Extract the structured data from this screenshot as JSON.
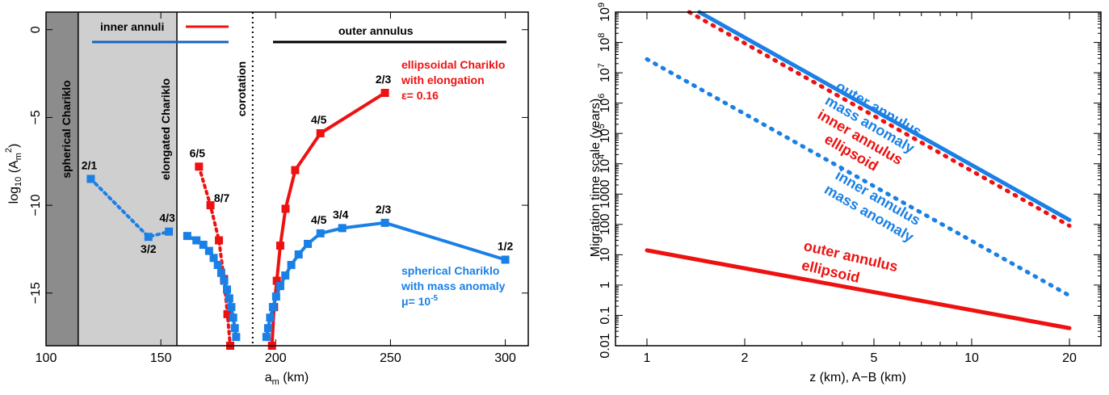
{
  "colors": {
    "red": "#ee1111",
    "blue": "#1a80e6",
    "dark_band": "#8c8c8c",
    "light_band": "#cfcfcf"
  },
  "chart_data": [
    {
      "type": "line",
      "xlabel": "a_m (km)",
      "ylabel": "log10 (A_m^2)",
      "xlim": [
        100,
        310
      ],
      "ylim": [
        -18,
        1
      ],
      "xticks": [
        "100",
        "150",
        "200",
        "250",
        "300"
      ],
      "yticks": [
        "0",
        "−5",
        "−10",
        "−15"
      ],
      "regions": [
        {
          "label": "spherical Chariklo",
          "x0": 100,
          "x1": 114
        },
        {
          "label": "elongated Chariklo",
          "x0": 114,
          "x1": 157
        }
      ],
      "corotation": {
        "label": "corotation",
        "x": 190
      },
      "bars": [
        {
          "label": "inner annuli",
          "color": "blue",
          "x0": 119,
          "x1": 183
        },
        {
          "label": "",
          "color": "red",
          "x0": 165,
          "x1": 183
        },
        {
          "label": "outer annulus",
          "color": "black",
          "x0": 199,
          "x1": 300
        }
      ],
      "series": [
        {
          "name": "ellipsoidal Chariklo with elongation ε= 0.16",
          "color": "red",
          "segments": [
            {
              "style": "dotted",
              "x": [
                166.6,
                171.6,
                175.3,
                177.5,
                179.0,
                180.2
              ],
              "y": [
                -7.8,
                -10.0,
                -12.0,
                -14.2,
                -16.2,
                -18.0
              ]
            },
            {
              "style": "solid",
              "x": [
                198.4,
                199.3,
                200.5,
                202.0,
                204.3,
                208.5,
                219.5,
                247.6
              ],
              "y": [
                -18.0,
                -15.8,
                -14.3,
                -12.3,
                -10.2,
                -8.0,
                -5.9,
                -3.6
              ]
            }
          ],
          "labels": [
            {
              "text": "6/5",
              "x": 166.6,
              "y": -7.8
            },
            {
              "text": "8/7",
              "x": 171.6,
              "y": -10.0
            },
            {
              "text": "4/5",
              "x": 219.5,
              "y": -5.9
            },
            {
              "text": "2/3",
              "x": 247.6,
              "y": -3.6
            }
          ]
        },
        {
          "name": "spherical Chariklo with mass anomaly μ= 10-5",
          "color": "blue",
          "segments": [
            {
              "style": "dotted",
              "x": [
                119.5,
                144.6,
                153.5
              ],
              "y": [
                -8.5,
                -11.8,
                -11.5
              ]
            },
            {
              "style": "solid",
              "x": [
                161.5,
                165.5,
                168.5,
                171.0,
                173.0,
                174.8,
                176.3,
                177.6,
                178.8,
                179.8,
                180.7,
                181.5,
                182.2,
                182.8
              ],
              "y": [
                -11.75,
                -12.0,
                -12.25,
                -12.6,
                -13.0,
                -13.4,
                -13.85,
                -14.3,
                -14.8,
                -15.3,
                -15.8,
                -16.4,
                -17.0,
                -17.5
              ]
            },
            {
              "style": "solid",
              "x": [
                196.0,
                196.7,
                197.6,
                198.8,
                200.2,
                202.0,
                204.2,
                206.8,
                210.0,
                214.0,
                219.5,
                229.0,
                247.6,
                300.0
              ],
              "y": [
                -17.5,
                -17.0,
                -16.4,
                -15.8,
                -15.2,
                -14.6,
                -14.0,
                -13.4,
                -12.8,
                -12.2,
                -11.6,
                -11.3,
                -11.0,
                -13.1
              ]
            }
          ],
          "labels": [
            {
              "text": "2/1",
              "x": 119.5,
              "y": -8.5
            },
            {
              "text": "3/2",
              "x": 144.6,
              "y": -11.8
            },
            {
              "text": "4/3",
              "x": 153.5,
              "y": -11.5
            },
            {
              "text": "4/5",
              "x": 219.5,
              "y": -11.6
            },
            {
              "text": "3/4",
              "x": 229.0,
              "y": -11.3
            },
            {
              "text": "2/3",
              "x": 247.6,
              "y": -11.0
            },
            {
              "text": "1/2",
              "x": 300.0,
              "y": -13.1
            }
          ]
        }
      ]
    },
    {
      "type": "line",
      "xlabel": "z (km), A−B (km)",
      "ylabel": "Migration time scale (years)",
      "xscale": "log",
      "yscale": "log",
      "xlim": [
        0.8,
        25
      ],
      "ylim": [
        0.01,
        1000000000
      ],
      "xticks": [
        {
          "v": 1,
          "t": "1"
        },
        {
          "v": 2,
          "t": "2"
        },
        {
          "v": 5,
          "t": "5"
        },
        {
          "v": 10,
          "t": "10"
        },
        {
          "v": 20,
          "t": "20"
        }
      ],
      "yticks": [
        {
          "v": 0.01,
          "t": "0.01"
        },
        {
          "v": 0.1,
          "t": "0.1"
        },
        {
          "v": 1,
          "t": "1"
        },
        {
          "v": 10,
          "t": "10"
        },
        {
          "v": 100,
          "t": "100"
        },
        {
          "v": 1000,
          "t": "1000"
        },
        {
          "v": 10000,
          "t": "10",
          "exp": "4"
        },
        {
          "v": 100000,
          "t": "10",
          "exp": "5"
        },
        {
          "v": 1000000,
          "t": "10",
          "exp": "6"
        },
        {
          "v": 10000000,
          "t": "10",
          "exp": "7"
        },
        {
          "v": 100000000,
          "t": "10",
          "exp": "8"
        },
        {
          "v": 1000000000,
          "t": "10",
          "exp": "9"
        }
      ],
      "series": [
        {
          "name": "outer annulus mass anomaly",
          "color": "blue",
          "style": "solid",
          "x": [
            1.45,
            20
          ],
          "y": [
            1000000000,
            140
          ]
        },
        {
          "name": "inner annulus ellipsoid",
          "color": "red",
          "style": "dotted",
          "x": [
            1.35,
            20
          ],
          "y": [
            1000000000,
            90
          ]
        },
        {
          "name": "inner annulus mass anomaly",
          "color": "blue",
          "style": "dotted",
          "x": [
            1,
            20
          ],
          "y": [
            28000000,
            0.45
          ]
        },
        {
          "name": "outer annulus ellipsoid",
          "color": "red",
          "style": "solid",
          "x": [
            1,
            20
          ],
          "y": [
            14,
            0.038
          ]
        }
      ]
    }
  ],
  "left_panel": {
    "ylabel_main": "log",
    "ylabel_sub": "10",
    "ylabel_mid": " (A",
    "ylabel_m": "m",
    "ylabel_sup": "2",
    "ylabel_end": ")",
    "xlabel_main": "a",
    "xlabel_sub": "m",
    "xlabel_end": " (km)",
    "region_dark_label": "spherical Chariklo",
    "region_light_label": "elongated Chariklo",
    "corotation_label": "corotation",
    "inner_label": "inner annuli",
    "outer_label": "outer annulus",
    "red_legend_1": "ellipsoidal Chariklo",
    "red_legend_2": "with elongation",
    "red_legend_3": "ε= 0.16",
    "blue_legend_1": "spherical Chariklo",
    "blue_legend_2": "with mass anomaly",
    "blue_legend_3a": "μ= 10",
    "blue_legend_3b": "-5"
  },
  "right_panel": {
    "ylabel": "Migration time scale (years)",
    "xlabel": "z (km), A−B (km)",
    "label_outer_mass_1": "outer annulus",
    "label_outer_mass_2": "mass anomaly",
    "label_inner_ell_1": "inner annulus",
    "label_inner_ell_2": "ellipsoid",
    "label_inner_mass_1": "inner annulus",
    "label_inner_mass_2": "mass anomaly",
    "label_outer_ell_1": "outer annulus",
    "label_outer_ell_2": "ellipsoid"
  }
}
